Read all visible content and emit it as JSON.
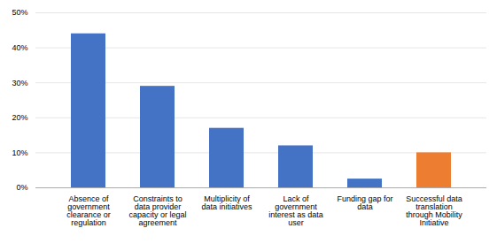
{
  "chart_data": {
    "type": "bar",
    "categories": [
      "Absence of\ngovernment\nclearance or\nregulation",
      "Constraints to\ndata provider\ncapacity or legal\nagreement",
      "Multiplicity of\ndata initiatives",
      "Lack of\ngovernment\ninterest as data\nuser",
      "Funding gap for\ndata",
      "Successful data\ntranslation\nthrough Mobility\nInitiative"
    ],
    "values": [
      44,
      29,
      17,
      12,
      2.5,
      10
    ],
    "colors": [
      "#4472C4",
      "#4472C4",
      "#4472C4",
      "#4472C4",
      "#4472C4",
      "#ED7D31"
    ],
    "ylim": [
      0,
      50
    ],
    "yticks": [
      {
        "value": 0,
        "label": "0%"
      },
      {
        "value": 10,
        "label": "10%"
      },
      {
        "value": 20,
        "label": "20%"
      },
      {
        "value": 30,
        "label": "30%"
      },
      {
        "value": 40,
        "label": "40%"
      },
      {
        "value": 50,
        "label": "50%"
      }
    ],
    "grid": true
  }
}
